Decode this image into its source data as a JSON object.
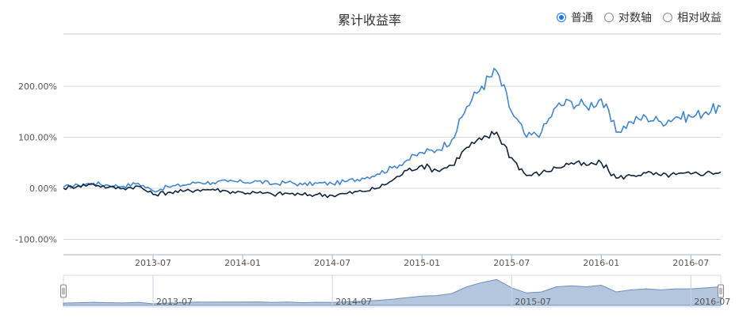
{
  "header": {
    "title": "累计收益率",
    "modes": [
      {
        "label": "普通",
        "selected": true
      },
      {
        "label": "对数轴",
        "selected": false
      },
      {
        "label": "相对收益",
        "selected": false
      }
    ]
  },
  "chart_data": {
    "type": "line",
    "title": "累计收益率",
    "y_ticks": [
      "200.00%",
      "100.00%",
      "0.00%",
      "-100.00%"
    ],
    "y_tick_values": [
      200,
      100,
      0,
      -100
    ],
    "ylim": [
      -130,
      250
    ],
    "x_ticks": [
      "2013-07",
      "2014-01",
      "2014-07",
      "2015-01",
      "2015-07",
      "2016-01",
      "2016-07"
    ],
    "x_range": [
      "2013-01",
      "2016-09"
    ],
    "grid": true,
    "colors": {
      "series_a": "#3f86d4",
      "series_b": "#10243a",
      "navigator_fill": "#b4c6de",
      "navigator_line": "#6f8fb8"
    },
    "series": [
      {
        "color": "#3f86d4",
        "x": [
          "2013-01",
          "2013-02",
          "2013-03",
          "2013-04",
          "2013-05",
          "2013-06",
          "2013-07",
          "2013-08",
          "2013-09",
          "2013-10",
          "2013-11",
          "2013-12",
          "2014-01",
          "2014-02",
          "2014-03",
          "2014-04",
          "2014-05",
          "2014-06",
          "2014-07",
          "2014-08",
          "2014-09",
          "2014-10",
          "2014-11",
          "2014-12",
          "2015-01",
          "2015-02",
          "2015-03",
          "2015-04",
          "2015-05",
          "2015-06",
          "2015-07",
          "2015-08",
          "2015-09",
          "2015-10",
          "2015-11",
          "2015-12",
          "2016-01",
          "2016-02",
          "2016-03",
          "2016-04",
          "2016-05",
          "2016-06",
          "2016-07",
          "2016-08",
          "2016-09"
        ],
        "values": [
          2,
          6,
          10,
          6,
          4,
          10,
          -5,
          3,
          6,
          12,
          11,
          13,
          12,
          14,
          8,
          12,
          7,
          10,
          9,
          14,
          20,
          28,
          40,
          55,
          70,
          75,
          95,
          160,
          200,
          230,
          150,
          100,
          110,
          160,
          170,
          160,
          175,
          110,
          130,
          140,
          130,
          140,
          140,
          150,
          160
        ]
      },
      {
        "color": "#10243a",
        "x": [
          "2013-01",
          "2013-02",
          "2013-03",
          "2013-04",
          "2013-05",
          "2013-06",
          "2013-07",
          "2013-08",
          "2013-09",
          "2013-10",
          "2013-11",
          "2013-12",
          "2014-01",
          "2014-02",
          "2014-03",
          "2014-04",
          "2014-05",
          "2014-06",
          "2014-07",
          "2014-08",
          "2014-09",
          "2014-10",
          "2014-11",
          "2014-12",
          "2015-01",
          "2015-02",
          "2015-03",
          "2015-04",
          "2015-05",
          "2015-06",
          "2015-07",
          "2015-08",
          "2015-09",
          "2015-10",
          "2015-11",
          "2015-12",
          "2016-01",
          "2016-02",
          "2016-03",
          "2016-04",
          "2016-05",
          "2016-06",
          "2016-07",
          "2016-08",
          "2016-09"
        ],
        "values": [
          0,
          5,
          8,
          2,
          0,
          4,
          -12,
          -8,
          -6,
          -3,
          -2,
          -6,
          -8,
          -9,
          -12,
          -10,
          -13,
          -12,
          -14,
          -10,
          -6,
          0,
          15,
          35,
          45,
          35,
          45,
          80,
          95,
          110,
          60,
          25,
          30,
          40,
          50,
          45,
          50,
          20,
          25,
          30,
          25,
          27,
          28,
          30,
          32
        ]
      }
    ],
    "navigator": {
      "x_ticks": [
        "2013-07",
        "2014-07",
        "2015-07",
        "2016-07"
      ]
    }
  }
}
